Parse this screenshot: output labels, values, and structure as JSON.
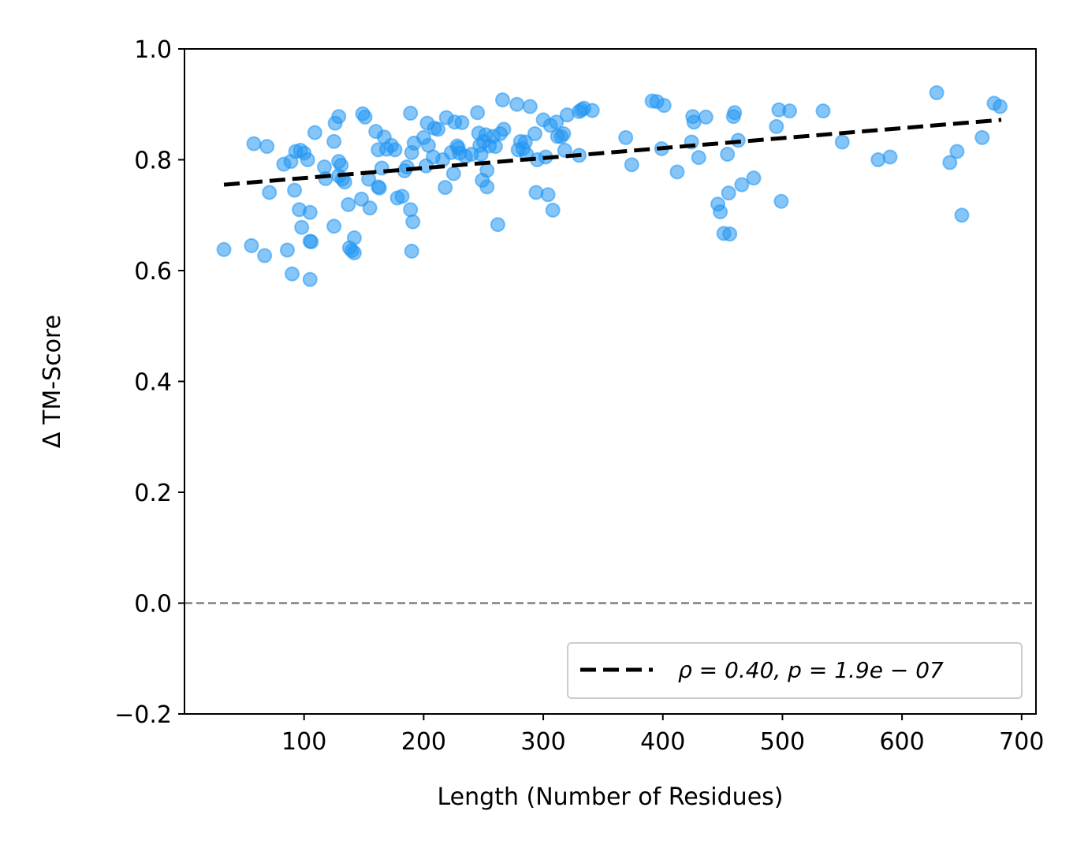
{
  "chart_data": {
    "type": "scatter",
    "title": "",
    "xlabel": "Length (Number of Residues)",
    "ylabel": "Δ TM-Score",
    "xlim": [
      0,
      712
    ],
    "ylim": [
      -0.2,
      1.0
    ],
    "xticks": [
      100,
      200,
      300,
      400,
      500,
      600,
      700
    ],
    "yticks": [
      -0.2,
      0.0,
      0.2,
      0.4,
      0.6,
      0.8,
      1.0
    ],
    "xtick_labels": [
      "100",
      "200",
      "300",
      "400",
      "500",
      "600",
      "700"
    ],
    "ytick_labels": [
      "−0.2",
      "0.0",
      "0.2",
      "0.4",
      "0.6",
      "0.8",
      "1.0"
    ],
    "grid": false,
    "legend": {
      "location": "lower-right",
      "label": "ρ = 0.40, p = 1.9e − 07"
    },
    "reference_line": {
      "y": 0.0,
      "style": "dashed",
      "color": "#808080"
    },
    "trend_line": {
      "x": [
        33,
        683
      ],
      "y": [
        0.755,
        0.872
      ],
      "style": "dashed",
      "color": "#000000"
    },
    "point_color": "#2196f3",
    "points": [
      [
        33,
        0.638
      ],
      [
        56,
        0.645
      ],
      [
        58,
        0.829
      ],
      [
        67,
        0.627
      ],
      [
        69,
        0.824
      ],
      [
        71,
        0.741
      ],
      [
        83,
        0.792
      ],
      [
        86,
        0.637
      ],
      [
        89,
        0.797
      ],
      [
        90,
        0.594
      ],
      [
        92,
        0.745
      ],
      [
        93,
        0.815
      ],
      [
        96,
        0.71
      ],
      [
        97,
        0.817
      ],
      [
        98,
        0.678
      ],
      [
        100,
        0.812
      ],
      [
        103,
        0.8
      ],
      [
        105,
        0.705
      ],
      [
        105,
        0.653
      ],
      [
        105,
        0.584
      ],
      [
        106,
        0.652
      ],
      [
        109,
        0.849
      ],
      [
        117,
        0.787
      ],
      [
        118,
        0.766
      ],
      [
        125,
        0.833
      ],
      [
        125,
        0.68
      ],
      [
        126,
        0.866
      ],
      [
        129,
        0.878
      ],
      [
        129,
        0.797
      ],
      [
        129,
        0.771
      ],
      [
        131,
        0.79
      ],
      [
        132,
        0.765
      ],
      [
        134,
        0.76
      ],
      [
        137,
        0.719
      ],
      [
        138,
        0.641
      ],
      [
        140,
        0.636
      ],
      [
        142,
        0.659
      ],
      [
        142,
        0.632
      ],
      [
        148,
        0.729
      ],
      [
        149,
        0.883
      ],
      [
        151,
        0.877
      ],
      [
        154,
        0.765
      ],
      [
        155,
        0.713
      ],
      [
        160,
        0.851
      ],
      [
        162,
        0.751
      ],
      [
        162,
        0.818
      ],
      [
        163,
        0.749
      ],
      [
        165,
        0.785
      ],
      [
        167,
        0.841
      ],
      [
        169,
        0.819
      ],
      [
        173,
        0.826
      ],
      [
        176,
        0.818
      ],
      [
        178,
        0.731
      ],
      [
        182,
        0.734
      ],
      [
        184,
        0.78
      ],
      [
        186,
        0.787
      ],
      [
        189,
        0.884
      ],
      [
        189,
        0.71
      ],
      [
        190,
        0.635
      ],
      [
        190,
        0.813
      ],
      [
        191,
        0.688
      ],
      [
        192,
        0.83
      ],
      [
        200,
        0.84
      ],
      [
        202,
        0.789
      ],
      [
        203,
        0.866
      ],
      [
        204,
        0.826
      ],
      [
        208,
        0.805
      ],
      [
        209,
        0.857
      ],
      [
        212,
        0.855
      ],
      [
        216,
        0.8
      ],
      [
        218,
        0.75
      ],
      [
        219,
        0.876
      ],
      [
        223,
        0.813
      ],
      [
        225,
        0.775
      ],
      [
        226,
        0.868
      ],
      [
        228,
        0.825
      ],
      [
        229,
        0.821
      ],
      [
        230,
        0.812
      ],
      [
        232,
        0.867
      ],
      [
        235,
        0.806
      ],
      [
        240,
        0.81
      ],
      [
        245,
        0.885
      ],
      [
        246,
        0.848
      ],
      [
        247,
        0.826
      ],
      [
        248,
        0.81
      ],
      [
        249,
        0.763
      ],
      [
        250,
        0.833
      ],
      [
        252,
        0.845
      ],
      [
        253,
        0.781
      ],
      [
        253,
        0.751
      ],
      [
        255,
        0.825
      ],
      [
        258,
        0.842
      ],
      [
        260,
        0.824
      ],
      [
        262,
        0.683
      ],
      [
        264,
        0.847
      ],
      [
        266,
        0.908
      ],
      [
        267,
        0.855
      ],
      [
        278,
        0.9
      ],
      [
        279,
        0.818
      ],
      [
        281,
        0.833
      ],
      [
        283,
        0.82
      ],
      [
        285,
        0.832
      ],
      [
        286,
        0.81
      ],
      [
        289,
        0.896
      ],
      [
        293,
        0.847
      ],
      [
        294,
        0.741
      ],
      [
        295,
        0.8
      ],
      [
        300,
        0.872
      ],
      [
        302,
        0.805
      ],
      [
        304,
        0.737
      ],
      [
        306,
        0.862
      ],
      [
        308,
        0.709
      ],
      [
        311,
        0.868
      ],
      [
        312,
        0.842
      ],
      [
        315,
        0.842
      ],
      [
        317,
        0.847
      ],
      [
        318,
        0.817
      ],
      [
        320,
        0.881
      ],
      [
        330,
        0.808
      ],
      [
        330,
        0.887
      ],
      [
        332,
        0.89
      ],
      [
        334,
        0.893
      ],
      [
        341,
        0.889
      ],
      [
        369,
        0.84
      ],
      [
        374,
        0.791
      ],
      [
        391,
        0.906
      ],
      [
        395,
        0.905
      ],
      [
        399,
        0.82
      ],
      [
        401,
        0.898
      ],
      [
        412,
        0.778
      ],
      [
        424,
        0.832
      ],
      [
        425,
        0.878
      ],
      [
        426,
        0.868
      ],
      [
        430,
        0.804
      ],
      [
        436,
        0.877
      ],
      [
        446,
        0.72
      ],
      [
        448,
        0.706
      ],
      [
        451,
        0.667
      ],
      [
        454,
        0.81
      ],
      [
        455,
        0.74
      ],
      [
        456,
        0.666
      ],
      [
        459,
        0.878
      ],
      [
        460,
        0.885
      ],
      [
        463,
        0.835
      ],
      [
        466,
        0.755
      ],
      [
        476,
        0.767
      ],
      [
        495,
        0.86
      ],
      [
        497,
        0.89
      ],
      [
        499,
        0.725
      ],
      [
        506,
        0.888
      ],
      [
        534,
        0.888
      ],
      [
        550,
        0.832
      ],
      [
        580,
        0.8
      ],
      [
        590,
        0.805
      ],
      [
        629,
        0.921
      ],
      [
        640,
        0.795
      ],
      [
        646,
        0.815
      ],
      [
        650,
        0.7
      ],
      [
        667,
        0.84
      ],
      [
        677,
        0.902
      ],
      [
        682,
        0.896
      ]
    ]
  }
}
